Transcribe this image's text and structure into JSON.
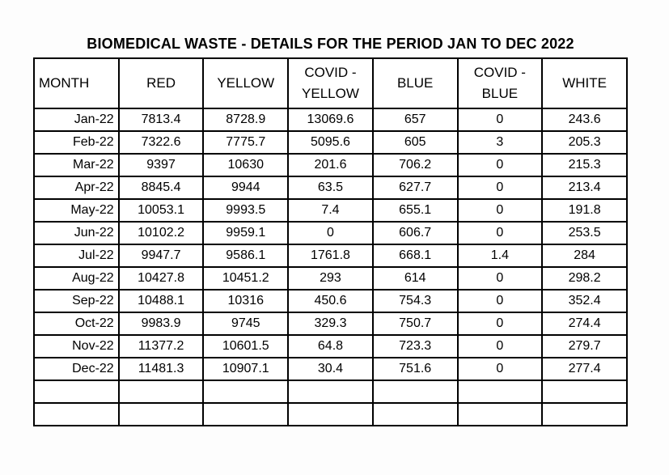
{
  "title": "BIOMEDICAL WASTE - DETAILS FOR THE PERIOD JAN TO DEC 2022",
  "table": {
    "columns": [
      "MONTH",
      "RED",
      "YELLOW",
      "COVID -\nYELLOW",
      "BLUE",
      "COVID -\nBLUE",
      "WHITE"
    ],
    "rows": [
      [
        "Jan-22",
        "7813.4",
        "8728.9",
        "13069.6",
        "657",
        "0",
        "243.6"
      ],
      [
        "Feb-22",
        "7322.6",
        "7775.7",
        "5095.6",
        "605",
        "3",
        "205.3"
      ],
      [
        "Mar-22",
        "9397",
        "10630",
        "201.6",
        "706.2",
        "0",
        "215.3"
      ],
      [
        "Apr-22",
        "8845.4",
        "9944",
        "63.5",
        "627.7",
        "0",
        "213.4"
      ],
      [
        "May-22",
        "10053.1",
        "9993.5",
        "7.4",
        "655.1",
        "0",
        "191.8"
      ],
      [
        "Jun-22",
        "10102.2",
        "9959.1",
        "0",
        "606.7",
        "0",
        "253.5"
      ],
      [
        "Jul-22",
        "9947.7",
        "9586.1",
        "1761.8",
        "668.1",
        "1.4",
        "284"
      ],
      [
        "Aug-22",
        "10427.8",
        "10451.2",
        "293",
        "614",
        "0",
        "298.2"
      ],
      [
        "Sep-22",
        "10488.1",
        "10316",
        "450.6",
        "754.3",
        "0",
        "352.4"
      ],
      [
        "Oct-22",
        "9983.9",
        "9745",
        "329.3",
        "750.7",
        "0",
        "274.4"
      ],
      [
        "Nov-22",
        "11377.2",
        "10601.5",
        "64.8",
        "723.3",
        "0",
        "279.7"
      ],
      [
        "Dec-22",
        "11481.3",
        "10907.1",
        "30.4",
        "751.6",
        "0",
        "277.4"
      ]
    ],
    "empty_row_count": 2,
    "colors": {
      "border": "#000000",
      "text": "#000000",
      "background": "#ffffff"
    }
  }
}
